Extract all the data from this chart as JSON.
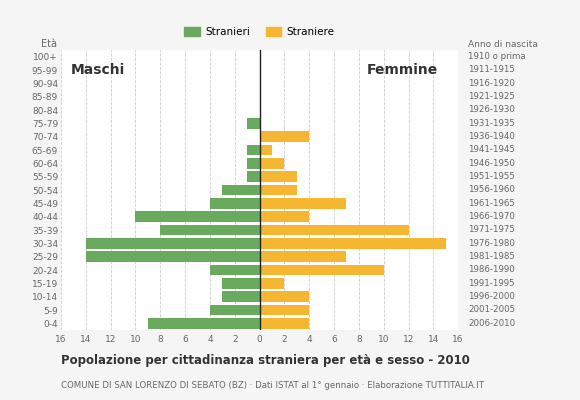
{
  "age_groups": [
    "0-4",
    "5-9",
    "10-14",
    "15-19",
    "20-24",
    "25-29",
    "30-34",
    "35-39",
    "40-44",
    "45-49",
    "50-54",
    "55-59",
    "60-64",
    "65-69",
    "70-74",
    "75-79",
    "80-84",
    "85-89",
    "90-94",
    "95-99",
    "100+"
  ],
  "birth_years": [
    "2006-2010",
    "2001-2005",
    "1996-2000",
    "1991-1995",
    "1986-1990",
    "1981-1985",
    "1976-1980",
    "1971-1975",
    "1966-1970",
    "1961-1965",
    "1956-1960",
    "1951-1955",
    "1946-1950",
    "1941-1945",
    "1936-1940",
    "1931-1935",
    "1926-1930",
    "1921-1925",
    "1916-1920",
    "1911-1915",
    "1910 o prima"
  ],
  "males": [
    9,
    4,
    3,
    3,
    4,
    14,
    14,
    8,
    10,
    4,
    3,
    1,
    1,
    1,
    0,
    1,
    0,
    0,
    0,
    0,
    0
  ],
  "females": [
    4,
    4,
    4,
    2,
    10,
    7,
    15,
    12,
    4,
    7,
    3,
    3,
    2,
    1,
    4,
    0,
    0,
    0,
    0,
    0,
    0
  ],
  "male_color": "#6aaa5e",
  "female_color": "#f5b731",
  "bg_color": "#f5f5f5",
  "bar_bg_color": "#ffffff",
  "title": "Popolazione per cittadinanza straniera per età e sesso - 2010",
  "subtitle": "COMUNE DI SAN LORENZO DI SEBATO (BZ) · Dati ISTAT al 1° gennaio · Elaborazione TUTTITALIA.IT",
  "xlabel_left": "Maschi",
  "xlabel_right": "Femmine",
  "ylabel": "Età",
  "ylabel_right": "Anno di nascita",
  "legend_male": "Stranieri",
  "legend_female": "Straniere",
  "xlim": 16,
  "grid_color": "#cccccc",
  "text_color": "#666666"
}
